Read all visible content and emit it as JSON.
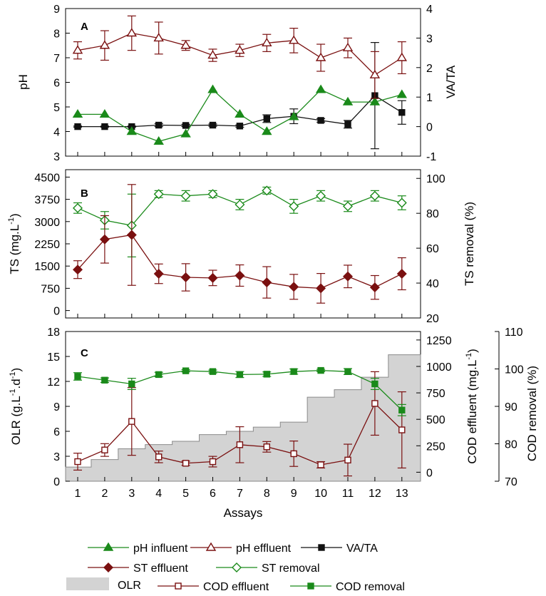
{
  "colors": {
    "green": "#1a8a1a",
    "darkred": "#7a1010",
    "black": "#111111",
    "olr_fill": "#d3d3d3",
    "olr_edge": "#8a8a8a"
  },
  "chart_data": [
    {
      "type": "line",
      "panel_label": "A",
      "xlabel": "",
      "ylabel": "pH",
      "y2label": "VA/TA",
      "x": [
        1,
        2,
        3,
        4,
        5,
        6,
        7,
        8,
        9,
        10,
        11,
        12,
        13
      ],
      "ylim": [
        3,
        9
      ],
      "yticks": [
        3,
        4,
        5,
        6,
        7,
        8,
        9
      ],
      "y2lim": [
        -1,
        4
      ],
      "y2ticks": [
        -1,
        0,
        1,
        2,
        3,
        4
      ],
      "series": [
        {
          "name": "pH influent",
          "axis": "left",
          "marker": "filled-triangle",
          "color": "#1a8a1a",
          "values": [
            4.7,
            4.7,
            4.0,
            3.6,
            3.9,
            5.7,
            4.7,
            4.0,
            4.6,
            5.7,
            5.2,
            5.2,
            5.5
          ]
        },
        {
          "name": "pH effluent",
          "axis": "left",
          "marker": "open-triangle",
          "color": "#7a1010",
          "values": [
            7.3,
            7.5,
            8.0,
            7.8,
            7.5,
            7.1,
            7.3,
            7.6,
            7.7,
            7.0,
            7.4,
            6.3,
            7.0
          ],
          "errors": [
            0.35,
            0.6,
            0.7,
            0.65,
            0.2,
            0.25,
            0.25,
            0.35,
            0.5,
            0.55,
            0.4,
            0.95,
            0.65
          ]
        },
        {
          "name": "VA/TA",
          "axis": "right",
          "marker": "filled-square",
          "color": "#111111",
          "values": [
            0.0,
            0.0,
            0.0,
            0.05,
            0.04,
            0.05,
            0.02,
            0.27,
            0.35,
            0.21,
            0.08,
            1.05,
            0.48
          ],
          "errors": [
            0.02,
            0.02,
            0.02,
            0.05,
            0.04,
            0.04,
            0.04,
            0.13,
            0.25,
            0.06,
            0.13,
            1.8,
            0.4
          ]
        }
      ]
    },
    {
      "type": "line",
      "panel_label": "B",
      "xlabel": "",
      "ylabel": "TS (mg.L-1)",
      "y2label": "TS removal (%)",
      "x": [
        1,
        2,
        3,
        4,
        5,
        6,
        7,
        8,
        9,
        10,
        11,
        12,
        13
      ],
      "ylim": [
        -250,
        4750
      ],
      "yticks": [
        0,
        750,
        1500,
        2250,
        3000,
        3750,
        4500
      ],
      "y2lim": [
        20,
        105
      ],
      "y2ticks": [
        20,
        40,
        60,
        80,
        100
      ],
      "series": [
        {
          "name": "ST effluent",
          "axis": "left",
          "marker": "filled-diamond",
          "color": "#7a1010",
          "values": [
            1380,
            2400,
            2550,
            1240,
            1120,
            1100,
            1180,
            950,
            800,
            750,
            1150,
            780,
            1240
          ],
          "errors": [
            300,
            800,
            1700,
            330,
            460,
            260,
            360,
            530,
            420,
            500,
            380,
            400,
            540
          ]
        },
        {
          "name": "ST removal",
          "axis": "right",
          "marker": "open-diamond",
          "color": "#1a8a1a",
          "values": [
            83,
            76,
            73,
            91,
            90,
            91,
            85,
            93,
            84,
            90,
            84,
            90,
            86
          ],
          "errors": [
            3,
            5,
            18,
            2,
            3,
            2,
            3,
            2,
            4,
            3,
            3,
            3,
            4
          ]
        }
      ]
    },
    {
      "type": "line",
      "panel_label": "C",
      "xlabel": "Assays",
      "ylabel": "OLR (g.L-1.d-1)",
      "y2label": "COD effluent (mg.L-1)",
      "y3label": "COD removal (%)",
      "x": [
        1,
        2,
        3,
        4,
        5,
        6,
        7,
        8,
        9,
        10,
        11,
        12,
        13
      ],
      "ylim": [
        0,
        18
      ],
      "yticks": [
        0,
        3,
        6,
        9,
        12,
        15,
        18
      ],
      "y2lim": [
        -85,
        1330
      ],
      "y2ticks": [
        0,
        250,
        500,
        750,
        1000,
        1250
      ],
      "y3lim": [
        70,
        110
      ],
      "y3ticks": [
        70,
        80,
        90,
        100,
        110
      ],
      "series": [
        {
          "name": "OLR",
          "axis": "left",
          "marker": "gray-step-area",
          "color": "#d3d3d3",
          "values": [
            1.7,
            2.6,
            3.9,
            4.4,
            4.8,
            5.6,
            6.0,
            6.5,
            7.1,
            10.1,
            11.0,
            12.5,
            15.2
          ]
        },
        {
          "name": "COD effluent",
          "axis": "right",
          "marker": "open-square",
          "color": "#7a1010",
          "values": [
            100,
            210,
            480,
            145,
            85,
            100,
            260,
            240,
            175,
            70,
            115,
            650,
            400
          ],
          "errors": [
            80,
            60,
            320,
            55,
            20,
            50,
            170,
            50,
            120,
            30,
            150,
            300,
            360
          ]
        },
        {
          "name": "COD removal",
          "axis": "third",
          "marker": "filled-square",
          "color": "#1a8a1a",
          "values": [
            98,
            97,
            96,
            98.5,
            99.5,
            99.3,
            98.5,
            98.6,
            99.3,
            99.6,
            99.3,
            96,
            89
          ],
          "errors": [
            1,
            0.6,
            1.5,
            0.6,
            0.3,
            0.4,
            0.8,
            0.6,
            0.7,
            0.3,
            0.8,
            1.5,
            1.5
          ]
        }
      ]
    }
  ],
  "text": {
    "ylabel_a": "pH",
    "y2label_a": "VA/TA",
    "ylabel_b_main": "TS (mg.L",
    "ylabel_b_sup": "-1",
    "ylabel_b_end": ")",
    "y2label_b": "TS removal (%)",
    "ylabel_c_main": "OLR (g.L",
    "ylabel_c_sup1": "-1",
    "ylabel_c_mid": ".d",
    "ylabel_c_sup2": "-1",
    "ylabel_c_end": ")",
    "y2label_c_main": "COD effluent (mg.L",
    "y2label_c_sup": "-1",
    "y2label_c_end": ")",
    "y3label_c": "COD removal (%)",
    "xlabel": "Assays"
  }
}
